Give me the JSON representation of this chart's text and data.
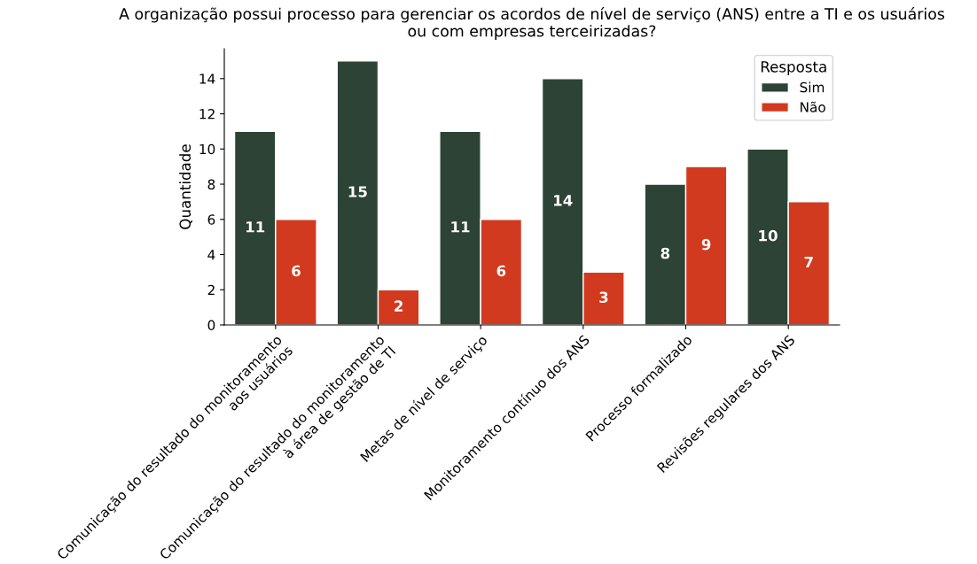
{
  "chart_data": {
    "type": "bar",
    "title": "A organização possui processo para gerenciar os acordos de nível de serviço (ANS) entre a TI e os usuários\nou com empresas terceirizadas?",
    "ylabel": "Quantidade",
    "legend_title": "Resposta",
    "categories": [
      "Comunicação do resultado do monitoramento\naos usuários",
      "Comunicação do resultado do monitoramento\nà área de gestão de TI",
      "Metas de nível de serviço",
      "Monitoramento contínuo dos ANS",
      "Processo formalizado",
      "Revisões regulares dos ANS"
    ],
    "series": [
      {
        "name": "Sim",
        "color": "#2c4335",
        "values": [
          11,
          15,
          11,
          14,
          8,
          10
        ]
      },
      {
        "name": "Não",
        "color": "#d13a1e",
        "values": [
          6,
          2,
          6,
          3,
          9,
          7
        ]
      }
    ],
    "ylim": [
      0,
      15.7
    ],
    "yticks": [
      0,
      2,
      4,
      6,
      8,
      10,
      12,
      14
    ],
    "data_labels": true,
    "legend": "top right",
    "grid": false
  }
}
